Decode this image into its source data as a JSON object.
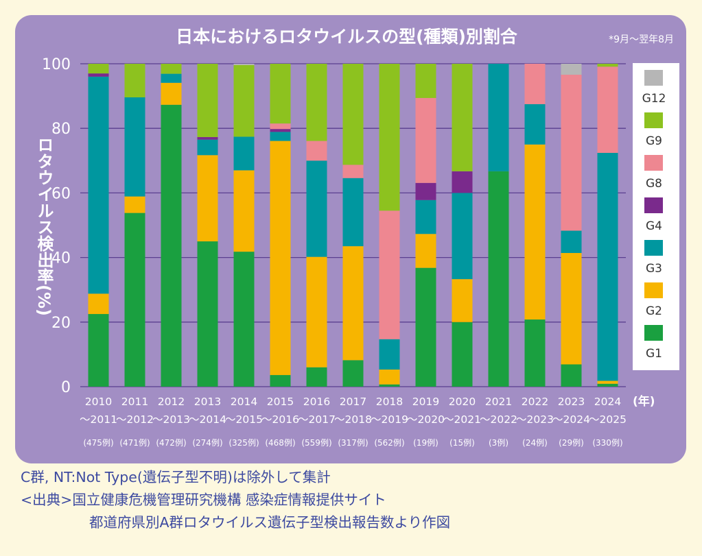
{
  "chart_data": {
    "type": "bar",
    "stacked": true,
    "title": "日本におけるロタウイルスの型(種類)別割合",
    "note": "*9月〜翌年8月",
    "ylabel": "ロタウイルス検出率(%)",
    "xunit": "(年)",
    "ylim": [
      0,
      100
    ],
    "yticks": [
      "0",
      "20",
      "40",
      "60",
      "80",
      "100"
    ],
    "grid": true,
    "legend_position": "right",
    "categories": [
      {
        "line1": "2010",
        "line2": "〜2011",
        "count": "(475例)"
      },
      {
        "line1": "2011",
        "line2": "〜2012",
        "count": "(471例)"
      },
      {
        "line1": "2012",
        "line2": "〜2013",
        "count": "(472例)"
      },
      {
        "line1": "2013",
        "line2": "〜2014",
        "count": "(274例)"
      },
      {
        "line1": "2014",
        "line2": "〜2015",
        "count": "(325例)"
      },
      {
        "line1": "2015",
        "line2": "〜2016",
        "count": "(468例)"
      },
      {
        "line1": "2016",
        "line2": "〜2017",
        "count": "(559例)"
      },
      {
        "line1": "2017",
        "line2": "〜2018",
        "count": "(317例)"
      },
      {
        "line1": "2018",
        "line2": "〜2019",
        "count": "(562例)"
      },
      {
        "line1": "2019",
        "line2": "〜2020",
        "count": "(19例)"
      },
      {
        "line1": "2020",
        "line2": "〜2021",
        "count": "(15例)"
      },
      {
        "line1": "2021",
        "line2": "〜2022",
        "count": "(3例)"
      },
      {
        "line1": "2022",
        "line2": "〜2023",
        "count": "(24例)"
      },
      {
        "line1": "2023",
        "line2": "〜2024",
        "count": "(29例)"
      },
      {
        "line1": "2024",
        "line2": "〜2025",
        "count": "(330例)"
      }
    ],
    "series": [
      {
        "name": "G1",
        "color": "#1aa040",
        "values": [
          22.5,
          53.8,
          87.3,
          45.0,
          41.8,
          3.6,
          6.0,
          8.2,
          0.7,
          36.8,
          20.0,
          66.7,
          20.8,
          6.9,
          0.9
        ]
      },
      {
        "name": "G2",
        "color": "#f7b500",
        "values": [
          6.3,
          5.1,
          6.8,
          26.7,
          25.2,
          72.5,
          34.2,
          35.3,
          4.6,
          10.5,
          13.3,
          0,
          54.2,
          34.5,
          0.9
        ]
      },
      {
        "name": "G3",
        "color": "#00979f",
        "values": [
          67.2,
          30.7,
          2.8,
          4.8,
          10.4,
          2.8,
          29.8,
          21.1,
          9.4,
          10.5,
          26.7,
          33.3,
          12.5,
          6.9,
          70.6
        ]
      },
      {
        "name": "G4",
        "color": "#7a2a8c",
        "values": [
          1.0,
          0,
          0,
          0.8,
          0,
          0.9,
          0,
          0,
          0,
          5.3,
          6.7,
          0,
          0,
          0,
          0
        ]
      },
      {
        "name": "G8",
        "color": "#ee8791",
        "values": [
          0,
          0,
          0,
          0,
          0,
          1.7,
          6.1,
          4.1,
          39.8,
          26.3,
          0,
          0,
          12.5,
          48.3,
          26.7
        ]
      },
      {
        "name": "G9",
        "color": "#8dc21f",
        "values": [
          3.0,
          10.4,
          3.1,
          22.7,
          22.2,
          18.5,
          23.9,
          31.3,
          45.5,
          10.6,
          33.3,
          0,
          0,
          0,
          0.9
        ]
      },
      {
        "name": "G12",
        "color": "#b6b6b6",
        "values": [
          0,
          0,
          0,
          0,
          0.4,
          0,
          0,
          0,
          0,
          0,
          0,
          0,
          0,
          3.4,
          0
        ]
      }
    ],
    "legend_order": [
      "G12",
      "G9",
      "G8",
      "G4",
      "G3",
      "G2",
      "G1"
    ]
  },
  "footer": {
    "line1": "C群, NT:Not Type(遺伝子型不明)は除外して集計",
    "line2": "<出典>国立健康危機管理研究機構 感染症情報提供サイト",
    "line3": "都道府県別A群ロタウイルス遺伝子型検出報告数より作図"
  }
}
